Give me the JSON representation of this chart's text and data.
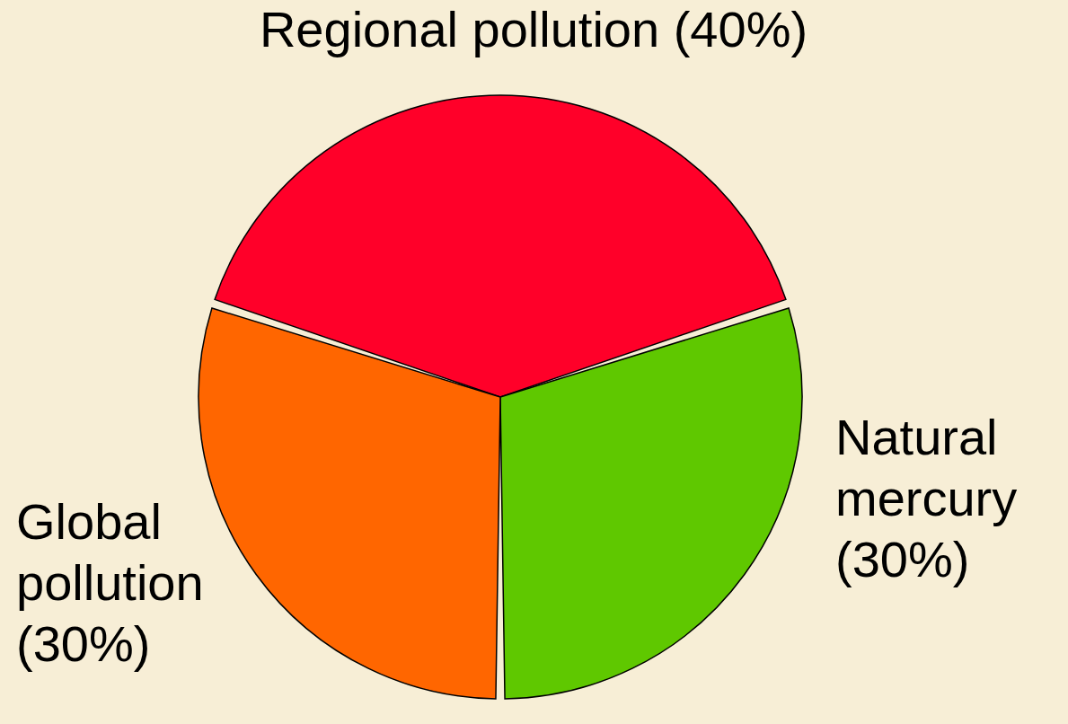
{
  "chart_data": {
    "type": "pie",
    "categories": [
      "Regional pollution (40%)",
      "Natural mercury (30%)",
      "Global pollution (30%)"
    ],
    "values": [
      40,
      30,
      30
    ],
    "colors": [
      "#ff0029",
      "#5fc800",
      "#ff6600"
    ]
  }
}
